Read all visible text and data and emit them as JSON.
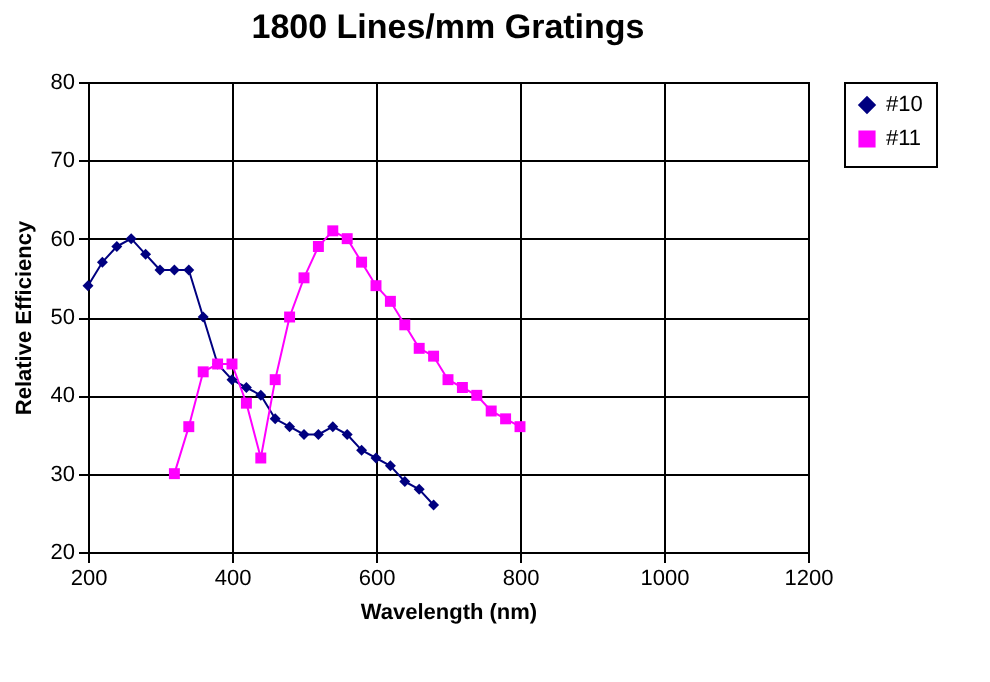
{
  "chart_data": {
    "type": "line",
    "title": "1800 Lines/mm Gratings",
    "xlabel": "Wavelength (nm)",
    "ylabel": "Relative Efficiency",
    "xlim": [
      200,
      1200
    ],
    "xticks": [
      200,
      400,
      600,
      800,
      1000,
      1200
    ],
    "ylim": [
      20,
      80
    ],
    "yticks": [
      20,
      30,
      40,
      50,
      60,
      70,
      80
    ],
    "grid": true,
    "legend": "right",
    "series": [
      {
        "name": "#10",
        "color": "#000080",
        "marker": "diamond",
        "x": [
          200,
          220,
          240,
          260,
          280,
          300,
          320,
          340,
          360,
          380,
          400,
          420,
          440,
          460,
          480,
          500,
          520,
          540,
          560,
          580,
          600,
          620,
          640,
          660,
          680
        ],
        "values": [
          54,
          57,
          59,
          60,
          58,
          56,
          56,
          56,
          50,
          44,
          42,
          41,
          40,
          37,
          36,
          35,
          35,
          36,
          35,
          33,
          32,
          31,
          29,
          28,
          26
        ]
      },
      {
        "name": "#11",
        "color": "#ff00ff",
        "marker": "square",
        "x": [
          320,
          340,
          360,
          380,
          400,
          420,
          440,
          460,
          480,
          500,
          520,
          540,
          560,
          580,
          600,
          620,
          640,
          660,
          680,
          700,
          720,
          740,
          760,
          780,
          800
        ],
        "values": [
          30,
          36,
          43,
          44,
          44,
          39,
          32,
          42,
          50,
          55,
          59,
          61,
          60,
          57,
          54,
          52,
          49,
          46,
          45,
          42,
          41,
          40,
          38,
          37,
          36
        ]
      }
    ]
  }
}
